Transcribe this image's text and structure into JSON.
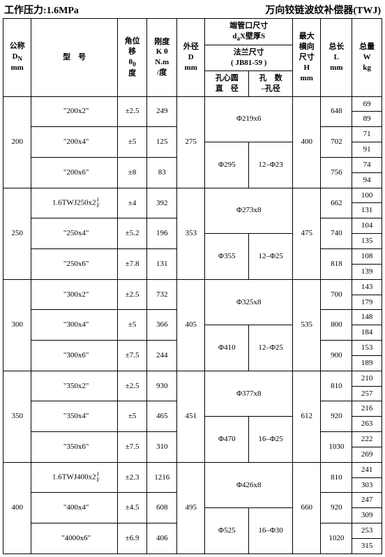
{
  "header_left": "工作压力:1.6MPa",
  "header_right": "万向铰链波纹补偿器(TWJ)",
  "thead": {
    "dn": "公称\nDₙ\nmm",
    "model": "型　号",
    "angle": "角位\n移\nθ₀\n度",
    "stiff": "刚度\nK θ\nN.m\n/度",
    "od": "外径\nD\nmm",
    "end_top": "端管口尺寸\ndₐX壁厚S",
    "flange_mid": "法兰尺寸\n( JB81-59 )",
    "flange_d": "孔心圆\n直　径",
    "flange_n": "孔　数\n–孔径",
    "max_h": "最大\n横向\n尺寸\nH\nmm",
    "len": "总长\nL\nmm",
    "wt": "总量\nW\nkg"
  },
  "groups": [
    {
      "dn": "200",
      "od": "275",
      "h": "400",
      "rows": [
        {
          "model": "\"200x2\"",
          "ang": "±2.5",
          "k": "249",
          "L": "648",
          "w": [
            "69",
            "89"
          ]
        },
        {
          "model": "\"200x4\"",
          "ang": "±5",
          "k": "125",
          "L": "702",
          "w": [
            "71",
            "91"
          ]
        },
        {
          "model": "\"200x6\"",
          "ang": "±8",
          "k": "83",
          "L": "756",
          "w": [
            "74",
            "94"
          ]
        }
      ],
      "flanges": [
        {
          "end": "Φ219x6",
          "d": "",
          "n": ""
        },
        {
          "end": "",
          "d": "Φ295",
          "n": "12–Φ23"
        }
      ]
    },
    {
      "dn": "250",
      "od": "353",
      "h": "475",
      "rows": [
        {
          "model": "1.6TWJ250x2",
          "jf": true,
          "ang": "±4",
          "k": "392",
          "L": "662",
          "w": [
            "100",
            "131"
          ]
        },
        {
          "model": "\"250x4\"",
          "ang": "±5.2",
          "k": "196",
          "L": "740",
          "w": [
            "104",
            "135"
          ]
        },
        {
          "model": "\"250x6\"",
          "ang": "±7.8",
          "k": "131",
          "L": "818",
          "w": [
            "108",
            "139"
          ]
        }
      ],
      "flanges": [
        {
          "end": "Φ273x8",
          "d": "",
          "n": ""
        },
        {
          "end": "",
          "d": "Φ355",
          "n": "12–Φ25"
        }
      ]
    },
    {
      "dn": "300",
      "od": "405",
      "h": "535",
      "rows": [
        {
          "model": "\"300x2\"",
          "ang": "±2.5",
          "k": "732",
          "L": "700",
          "w": [
            "143",
            "179"
          ]
        },
        {
          "model": "\"300x4\"",
          "ang": "±5",
          "k": "366",
          "L": "800",
          "w": [
            "148",
            "184"
          ]
        },
        {
          "model": "\"300x6\"",
          "ang": "±7.5",
          "k": "244",
          "L": "900",
          "w": [
            "153",
            "189"
          ]
        }
      ],
      "flanges": [
        {
          "end": "Φ325x8",
          "d": "",
          "n": ""
        },
        {
          "end": "",
          "d": "Φ410",
          "n": "12–Φ25"
        }
      ]
    },
    {
      "dn": "350",
      "od": "451",
      "h": "612",
      "rows": [
        {
          "model": "\"350x2\"",
          "ang": "±2.5",
          "k": "930",
          "L": "810",
          "w": [
            "210",
            "257"
          ]
        },
        {
          "model": "\"350x4\"",
          "ang": "±5",
          "k": "465",
          "L": "920",
          "w": [
            "216",
            "263"
          ]
        },
        {
          "model": "\"350x6\"",
          "ang": "±7.5",
          "k": "310",
          "L": "1030",
          "w": [
            "222",
            "269"
          ]
        }
      ],
      "flanges": [
        {
          "end": "Φ377x8",
          "d": "",
          "n": ""
        },
        {
          "end": "",
          "d": "Φ470",
          "n": "16–Φ25"
        }
      ]
    },
    {
      "dn": "400",
      "od": "495",
      "h": "660",
      "rows": [
        {
          "model": "1.6TWJ400x2",
          "jf": true,
          "ang": "±2.3",
          "k": "1216",
          "L": "810",
          "w": [
            "241",
            "303"
          ]
        },
        {
          "model": "\"400x4\"",
          "ang": "±4.5",
          "k": "608",
          "L": "920",
          "w": [
            "247",
            "309"
          ]
        },
        {
          "model": "\"4000x6\"",
          "ang": "±6.9",
          "k": "406",
          "L": "1020",
          "w": [
            "253",
            "315"
          ]
        }
      ],
      "flanges": [
        {
          "end": "Φ426x8",
          "d": "",
          "n": ""
        },
        {
          "end": "",
          "d": "Φ525",
          "n": "16–Φ30"
        }
      ]
    }
  ]
}
